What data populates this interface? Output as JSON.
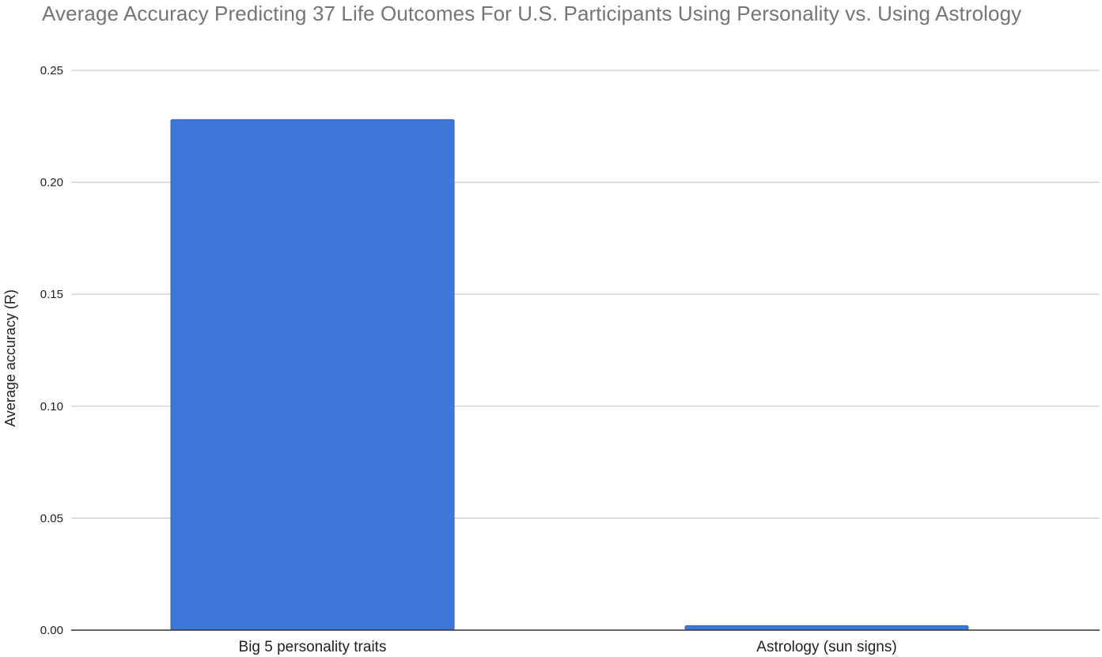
{
  "chart_data": {
    "type": "bar",
    "title": "Average Accuracy Predicting 37 Life Outcomes For U.S. Participants Using Personality vs. Using Astrology",
    "xlabel": "",
    "ylabel": "Average accuracy (R)",
    "categories": [
      "Big 5 personality traits",
      "Astrology (sun signs)"
    ],
    "values": [
      0.228,
      0.002
    ],
    "ylim": [
      0,
      0.25
    ],
    "yticks": [
      "0.00",
      "0.05",
      "0.10",
      "0.15",
      "0.20",
      "0.25"
    ],
    "grid": true,
    "bar_color": "#3d78d8",
    "gridline_color": "#cccccc",
    "axis_color": "#333333",
    "title_color": "#757575"
  }
}
